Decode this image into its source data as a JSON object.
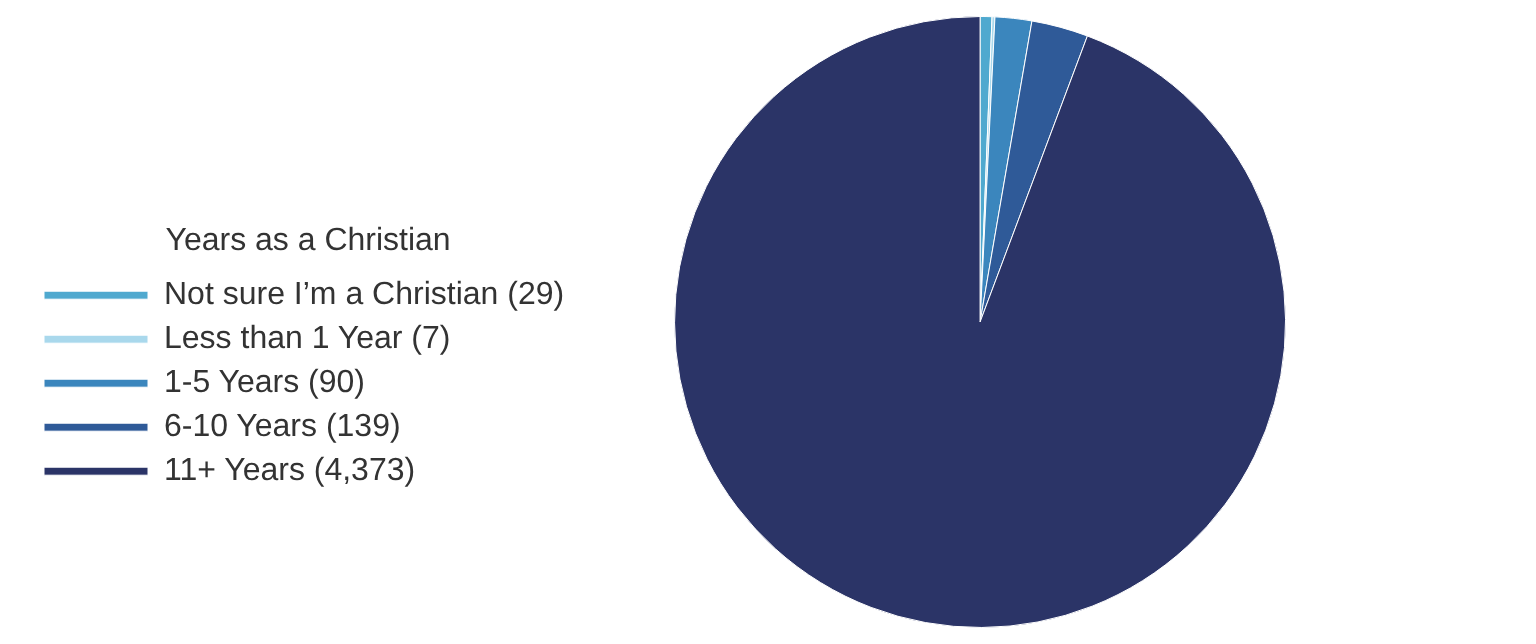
{
  "chart_data": {
    "type": "pie",
    "legend_title": "Years as a Christian",
    "categories": [
      "Not sure I’m a Christian (29)",
      "Less than 1 Year (7)",
      "1-5 Years (90)",
      "6-10 Years (139)",
      "11+ Years (4,373)"
    ],
    "values": [
      29,
      7,
      90,
      139,
      4373
    ],
    "colors": [
      "#4fa9cf",
      "#a9d8ec",
      "#3b86bd",
      "#2f5a98",
      "#2b3467"
    ],
    "legend": "left"
  }
}
